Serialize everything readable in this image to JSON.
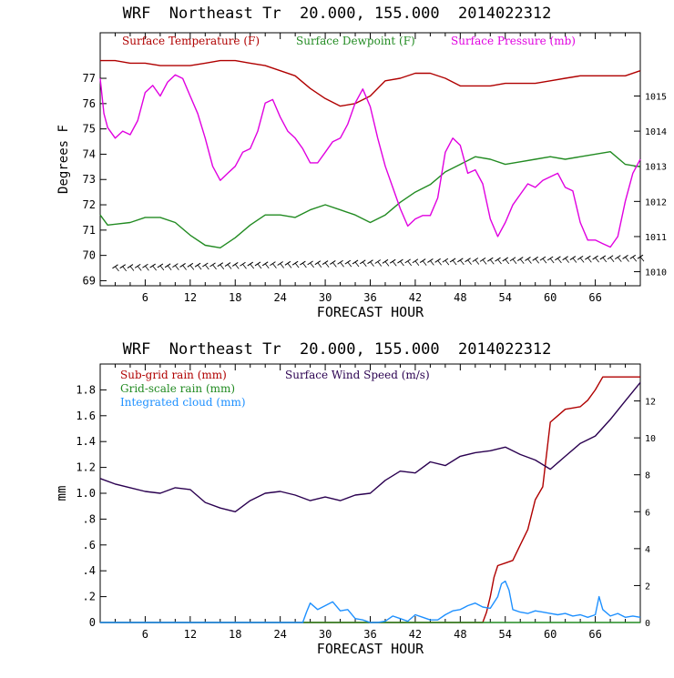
{
  "colors": {
    "temperature": "#b00000",
    "dewpoint": "#228b22",
    "pressure": "#e000e0",
    "subgrid_rain": "#b00000",
    "gridscale_rain": "#228b22",
    "cloud": "#1e90ff",
    "wind": "#2a0050",
    "axes": "#000000"
  },
  "chart_data": [
    {
      "type": "line",
      "title": "WRF  Northeast Tr  20.000, 155.000  2014022312",
      "xlabel": "FORECAST HOUR",
      "ylabel": "Degrees F",
      "xlim": [
        0,
        72
      ],
      "ylim": [
        68.8,
        78.8
      ],
      "y2lim": [
        1009.6,
        1016.8
      ],
      "xticks": [
        6,
        12,
        18,
        24,
        30,
        36,
        42,
        48,
        54,
        60,
        66
      ],
      "xticklabels": [
        "6",
        "12",
        "18",
        "24",
        "30",
        "36",
        "42",
        "48",
        "54",
        "60",
        "66"
      ],
      "yticks": [
        69,
        70,
        71,
        72,
        73,
        74,
        75,
        76,
        77
      ],
      "yticklabels": [
        "69",
        "70",
        "71",
        "72",
        "73",
        "74",
        "75",
        "76",
        "77"
      ],
      "y2ticks": [
        1010,
        1011,
        1012,
        1013,
        1014,
        1015
      ],
      "y2ticklabels": [
        "1010",
        "1011",
        "1012",
        "1013",
        "1014",
        "1015"
      ],
      "legend": {
        "temperature": "Surface Temperature (F)",
        "dewpoint": "Surface Dewpoint (F)",
        "pressure": "Surface Pressure (mb)"
      },
      "legend_placement": "top",
      "series": [
        {
          "name": "Surface Temperature (F)",
          "axis": "left",
          "x": [
            0,
            2,
            4,
            6,
            8,
            10,
            12,
            14,
            16,
            18,
            20,
            22,
            24,
            26,
            28,
            30,
            32,
            34,
            36,
            38,
            40,
            42,
            44,
            46,
            48,
            50,
            52,
            54,
            56,
            58,
            60,
            62,
            64,
            66,
            68,
            70,
            72
          ],
          "values": [
            77.7,
            77.7,
            77.6,
            77.6,
            77.5,
            77.5,
            77.5,
            77.6,
            77.7,
            77.7,
            77.6,
            77.5,
            77.3,
            77.1,
            76.6,
            76.2,
            75.9,
            76.0,
            76.3,
            76.9,
            77.0,
            77.2,
            77.2,
            77.0,
            76.7,
            76.7,
            76.7,
            76.8,
            76.8,
            76.8,
            76.9,
            77.0,
            77.1,
            77.1,
            77.1,
            77.1,
            77.3
          ]
        },
        {
          "name": "Surface Dewpoint (F)",
          "axis": "left",
          "x": [
            0,
            1,
            4,
            6,
            8,
            10,
            12,
            14,
            16,
            18,
            20,
            22,
            24,
            26,
            28,
            30,
            32,
            34,
            36,
            38,
            40,
            42,
            44,
            46,
            48,
            50,
            52,
            54,
            56,
            58,
            60,
            62,
            64,
            66,
            68,
            70,
            72
          ],
          "values": [
            71.6,
            71.2,
            71.3,
            71.5,
            71.5,
            71.3,
            70.8,
            70.4,
            70.3,
            70.7,
            71.2,
            71.6,
            71.6,
            71.5,
            71.8,
            72.0,
            71.8,
            71.6,
            71.3,
            71.6,
            72.1,
            72.5,
            72.8,
            73.3,
            73.6,
            73.9,
            73.8,
            73.6,
            73.7,
            73.8,
            73.9,
            73.8,
            73.9,
            74.0,
            74.1,
            73.6,
            73.5
          ]
        },
        {
          "name": "Surface Pressure (mb)",
          "axis": "right",
          "x": [
            0,
            0.5,
            1,
            2,
            3,
            4,
            5,
            6,
            7,
            8,
            9,
            10,
            11,
            12,
            13,
            14,
            15,
            16,
            17,
            18,
            19,
            20,
            21,
            22,
            23,
            24,
            25,
            26,
            27,
            28,
            29,
            30,
            31,
            32,
            33,
            34,
            35,
            36,
            37,
            38,
            39,
            40,
            41,
            42,
            43,
            44,
            45,
            46,
            47,
            48,
            49,
            50,
            51,
            52,
            53,
            54,
            55,
            56,
            57,
            58,
            59,
            60,
            61,
            62,
            63,
            64,
            65,
            66,
            67,
            68,
            69,
            70,
            71,
            72
          ],
          "values": [
            1015.5,
            1014.5,
            1014.1,
            1013.8,
            1014.0,
            1013.9,
            1014.3,
            1015.1,
            1015.3,
            1015.0,
            1015.4,
            1015.6,
            1015.5,
            1015.0,
            1014.5,
            1013.8,
            1013.0,
            1012.6,
            1012.8,
            1013.0,
            1013.4,
            1013.5,
            1014.0,
            1014.8,
            1014.9,
            1014.4,
            1014.0,
            1013.8,
            1013.5,
            1013.1,
            1013.1,
            1013.4,
            1013.7,
            1013.8,
            1014.2,
            1014.8,
            1015.2,
            1014.7,
            1013.8,
            1013.0,
            1012.4,
            1011.8,
            1011.3,
            1011.5,
            1011.6,
            1011.6,
            1012.1,
            1013.4,
            1013.8,
            1013.6,
            1012.8,
            1012.9,
            1012.5,
            1011.5,
            1011.0,
            1011.4,
            1011.9,
            1012.2,
            1012.5,
            1012.4,
            1012.6,
            1012.7,
            1012.8,
            1012.4,
            1012.3,
            1011.4,
            1010.9,
            1010.9,
            1010.8,
            1010.7,
            1011.0,
            1012.0,
            1012.8,
            1013.2
          ]
        }
      ],
      "wind_barbs": {
        "note": "Surface wind barbs along the bottom of the panel",
        "x_start": 2,
        "x_end": 72,
        "x_step": 1
      }
    },
    {
      "type": "line",
      "title": "WRF  Northeast Tr  20.000, 155.000  2014022312",
      "xlabel": "FORECAST HOUR",
      "ylabel": "mm",
      "xlim": [
        0,
        72
      ],
      "ylim": [
        0,
        2.0
      ],
      "y2lim": [
        0,
        14.0
      ],
      "xticks": [
        6,
        12,
        18,
        24,
        30,
        36,
        42,
        48,
        54,
        60,
        66
      ],
      "xticklabels": [
        "6",
        "12",
        "18",
        "24",
        "30",
        "36",
        "42",
        "48",
        "54",
        "60",
        "66"
      ],
      "yticks": [
        0,
        0.2,
        0.4,
        0.6,
        0.8,
        1.0,
        1.2,
        1.4,
        1.6,
        1.8
      ],
      "yticklabels": [
        "0",
        ".2",
        ".4",
        ".6",
        ".8",
        "1.0",
        "1.2",
        "1.4",
        "1.6",
        "1.8"
      ],
      "y2ticks": [
        0,
        2,
        4,
        6,
        8,
        10,
        12
      ],
      "y2ticklabels": [
        "0",
        "2",
        "4",
        "6",
        "8",
        "10",
        "12"
      ],
      "legend": {
        "subgrid_rain": "Sub-grid rain (mm)",
        "gridscale_rain": "Grid-scale rain (mm)",
        "cloud": "Integrated cloud (mm)",
        "wind": "Surface Wind Speed (m/s)"
      },
      "legend_placement": "top-left",
      "series": [
        {
          "name": "Sub-grid rain (mm)",
          "axis": "left",
          "x": [
            0,
            51,
            51.5,
            52,
            52.5,
            53,
            54,
            55,
            56,
            57,
            58,
            59,
            60,
            61,
            62,
            63,
            64,
            65,
            66,
            67,
            68,
            69,
            70,
            71,
            72
          ],
          "values": [
            0,
            0,
            0.08,
            0.2,
            0.35,
            0.44,
            0.46,
            0.48,
            0.6,
            0.72,
            0.95,
            1.05,
            1.55,
            1.6,
            1.65,
            1.66,
            1.67,
            1.72,
            1.8,
            1.9,
            1.9,
            1.9,
            1.9,
            1.9,
            1.9
          ]
        },
        {
          "name": "Grid-scale rain (mm)",
          "axis": "left",
          "x": [
            0,
            72
          ],
          "values": [
            0,
            0
          ]
        },
        {
          "name": "Integrated cloud (mm)",
          "axis": "left",
          "x": [
            0,
            27,
            27.5,
            28,
            29,
            30,
            31,
            32,
            33,
            34,
            35,
            36,
            37,
            38,
            39,
            40,
            41,
            42,
            43,
            44,
            45,
            46,
            47,
            48,
            49,
            50,
            51,
            52,
            53,
            53.5,
            54,
            54.5,
            55,
            56,
            57,
            58,
            59,
            60,
            61,
            62,
            63,
            64,
            65,
            66,
            66.5,
            67,
            68,
            69,
            70,
            71,
            72
          ],
          "values": [
            0,
            0,
            0.08,
            0.15,
            0.1,
            0.13,
            0.16,
            0.09,
            0.1,
            0.03,
            0.02,
            0.0,
            0.0,
            0.01,
            0.05,
            0.03,
            0.01,
            0.06,
            0.04,
            0.02,
            0.02,
            0.06,
            0.09,
            0.1,
            0.13,
            0.15,
            0.12,
            0.11,
            0.2,
            0.3,
            0.32,
            0.25,
            0.1,
            0.08,
            0.07,
            0.09,
            0.08,
            0.07,
            0.06,
            0.07,
            0.05,
            0.06,
            0.04,
            0.06,
            0.2,
            0.1,
            0.05,
            0.07,
            0.04,
            0.05,
            0.04
          ]
        },
        {
          "name": "Surface Wind Speed (m/s)",
          "axis": "right",
          "x": [
            0,
            2,
            4,
            6,
            8,
            10,
            12,
            14,
            16,
            18,
            20,
            22,
            24,
            26,
            28,
            30,
            32,
            34,
            36,
            38,
            40,
            42,
            44,
            46,
            48,
            50,
            52,
            54,
            56,
            58,
            60,
            62,
            64,
            66,
            68,
            70,
            72
          ],
          "values": [
            7.8,
            7.5,
            7.3,
            7.1,
            7.0,
            7.3,
            7.2,
            6.5,
            6.2,
            6.0,
            6.6,
            7.0,
            7.1,
            6.9,
            6.6,
            6.8,
            6.6,
            6.9,
            7.0,
            7.7,
            8.2,
            8.1,
            8.7,
            8.5,
            9.0,
            9.2,
            9.3,
            9.5,
            9.1,
            8.8,
            8.3,
            9.0,
            9.7,
            10.1,
            11.0,
            12.0,
            13.0
          ]
        }
      ]
    }
  ]
}
